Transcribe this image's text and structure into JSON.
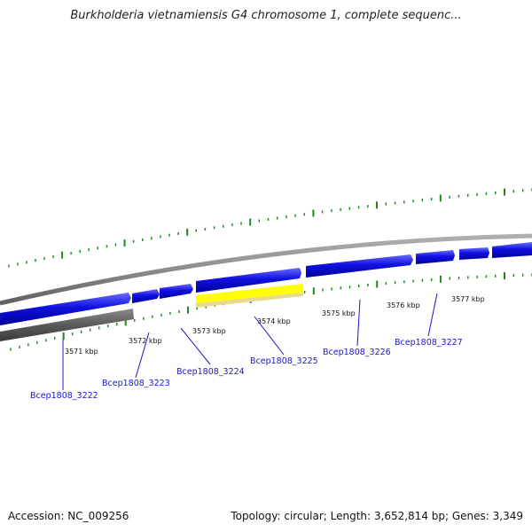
{
  "title": "Burkholderia vietnamiensis G4 chromosome 1, complete sequenc...",
  "footer": {
    "accession": "Accession: NC_009256",
    "topology": "Topology: circular; Length: 3,652,814 bp; Genes: 3,349"
  },
  "scale_marks": [
    "3571 kbp",
    "3572 kbp",
    "3573 kbp",
    "3574 kbp",
    "3575 kbp",
    "3576 kbp",
    "3577 kbp"
  ],
  "genes": [
    "Bcep1808_3222",
    "Bcep1808_3223",
    "Bcep1808_3224",
    "Bcep1808_3225",
    "Bcep1808_3226",
    "Bcep1808_3227"
  ],
  "colors": {
    "forward_cds": "#1010e0",
    "backbone": "#8c8c8c",
    "reverse_feature": "#5a5a5a",
    "highlight": "#ffff00",
    "tick": "#1c8a1c",
    "label": "#1818c8"
  }
}
